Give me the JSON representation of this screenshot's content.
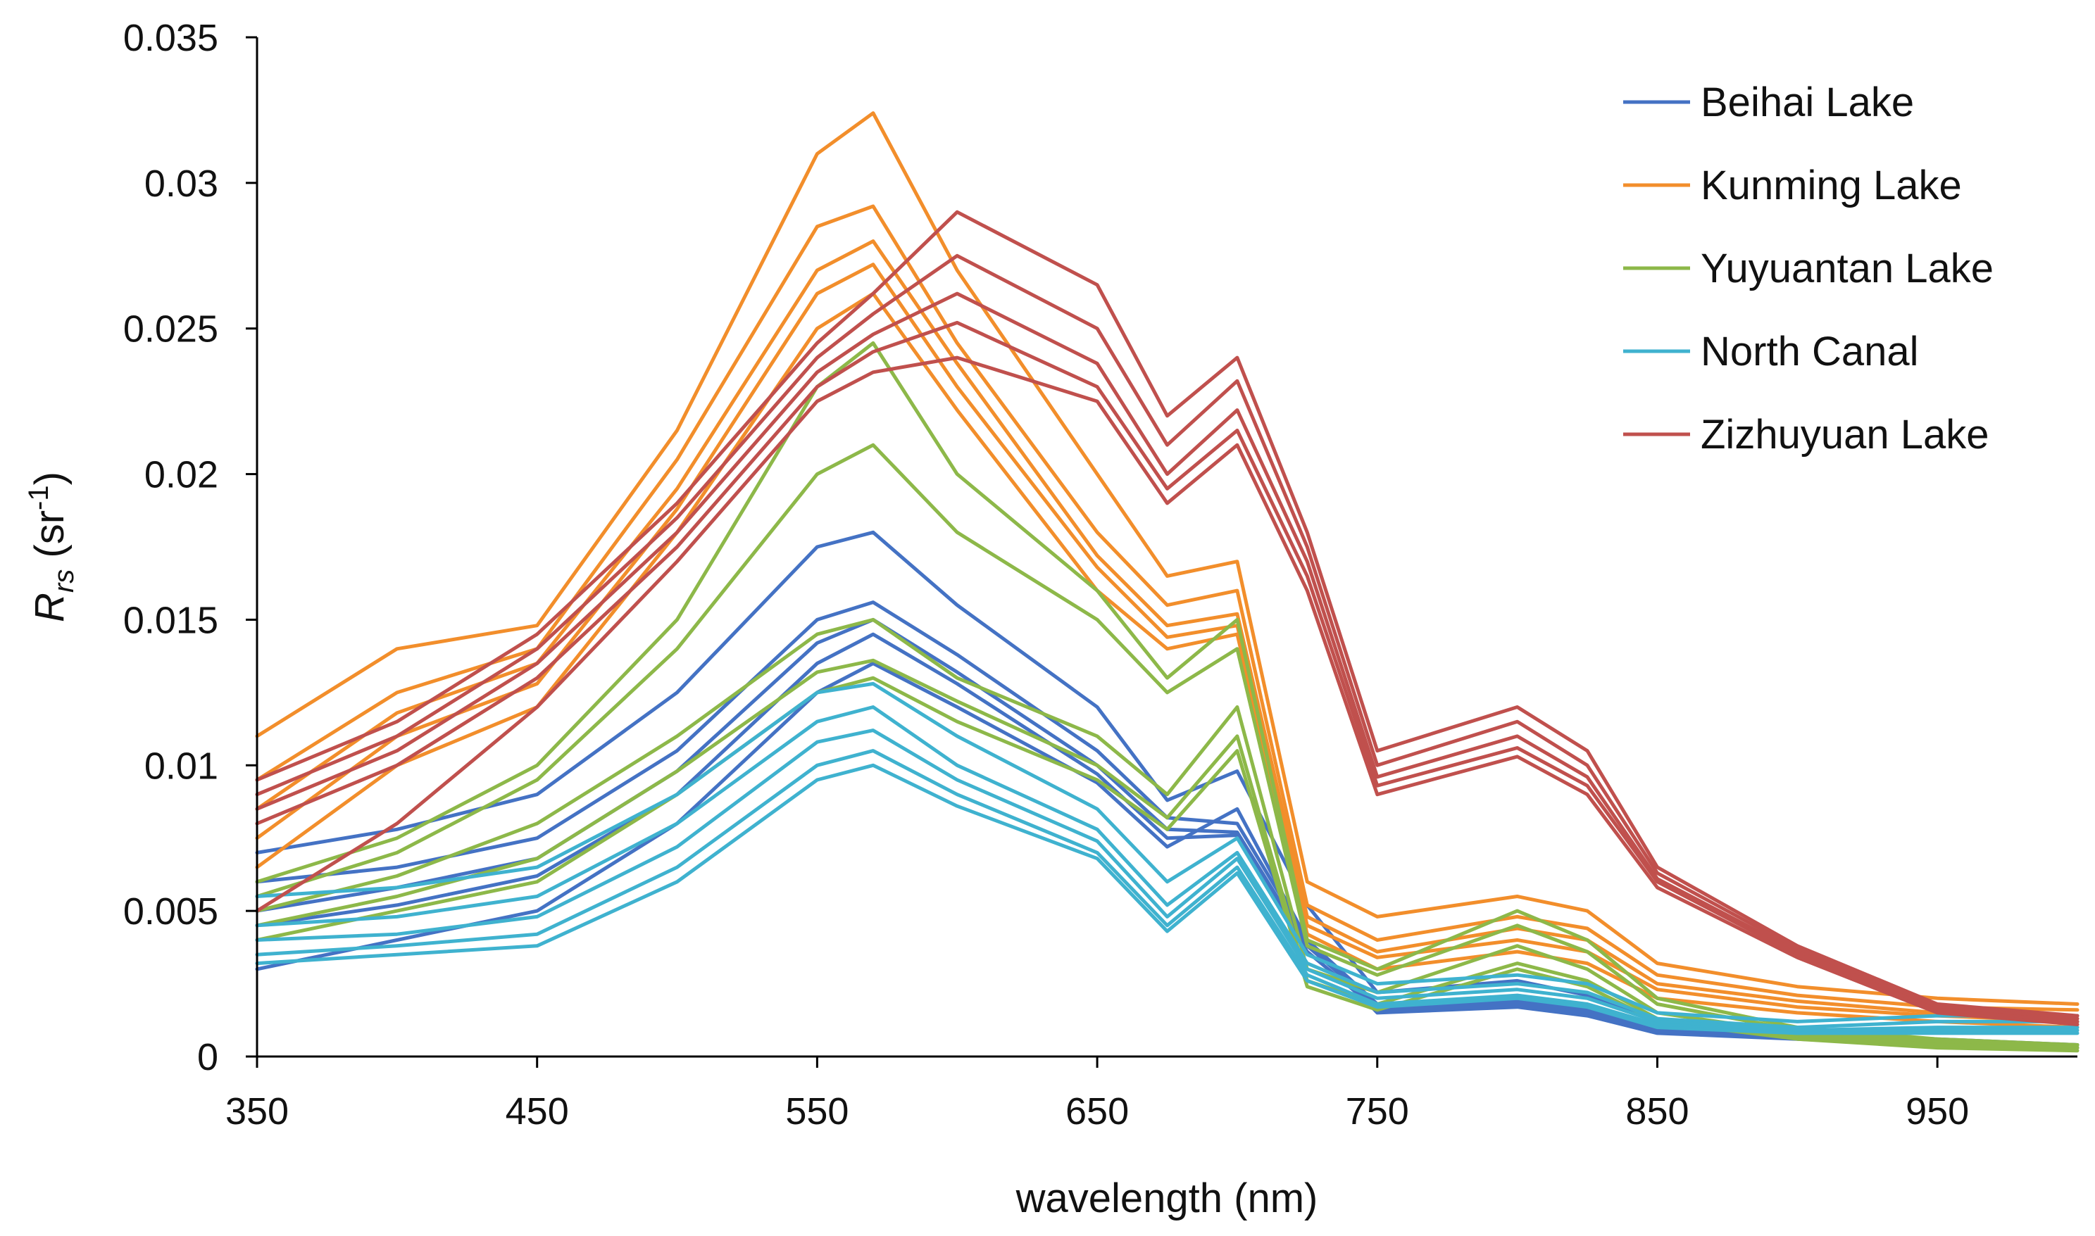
{
  "chart_data": {
    "type": "line",
    "title": "",
    "xlabel": "wavelength (nm)",
    "ylabel": {
      "main": "R",
      "subscript": "rs",
      "unit_prefix": " (sr",
      "unit_sup": "-1",
      "unit_suffix": ")"
    },
    "xlim": [
      350,
      1000
    ],
    "ylim": [
      0,
      0.035
    ],
    "x_ticks": [
      350,
      450,
      550,
      650,
      750,
      850,
      950
    ],
    "x_tick_labels": [
      "350",
      "450",
      "550",
      "650",
      "750",
      "850",
      "950"
    ],
    "y_ticks": [
      0,
      0.005,
      0.01,
      0.015,
      0.02,
      0.025,
      0.03,
      0.035
    ],
    "y_tick_labels": [
      "0",
      "0.005",
      "0.01",
      "0.015",
      "0.02",
      "0.025",
      "0.03",
      "0.035"
    ],
    "grid": false,
    "legend_position": "top-right",
    "x": [
      350,
      400,
      450,
      500,
      550,
      570,
      600,
      650,
      675,
      700,
      725,
      750,
      800,
      825,
      850,
      900,
      950,
      1000
    ],
    "groups": [
      {
        "name": "Beihai Lake",
        "color": "#4472C4",
        "series": [
          {
            "name": "Beihai Lake 1",
            "values": [
              0.006,
              0.0065,
              0.0075,
              0.0105,
              0.015,
              0.0156,
              0.0138,
              0.0105,
              0.0082,
              0.008,
              0.004,
              0.0018,
              0.002,
              0.0017,
              0.001,
              0.0008,
              0.0005,
              0.0004
            ]
          },
          {
            "name": "Beihai Lake 2",
            "values": [
              0.005,
              0.0058,
              0.0068,
              0.0098,
              0.0142,
              0.015,
              0.0132,
              0.01,
              0.0078,
              0.0077,
              0.0038,
              0.0017,
              0.0019,
              0.0016,
              0.0009,
              0.0007,
              0.0005,
              0.0004
            ]
          },
          {
            "name": "Beihai Lake 3",
            "values": [
              0.0045,
              0.0052,
              0.0062,
              0.009,
              0.0135,
              0.0145,
              0.0128,
              0.0097,
              0.0075,
              0.0076,
              0.0036,
              0.0016,
              0.0018,
              0.0015,
              0.0009,
              0.0007,
              0.0004,
              0.0003
            ]
          },
          {
            "name": "Beihai Lake 4",
            "values": [
              0.007,
              0.0078,
              0.009,
              0.0125,
              0.0175,
              0.018,
              0.0155,
              0.012,
              0.0088,
              0.0098,
              0.0052,
              0.0022,
              0.0026,
              0.0021,
              0.0012,
              0.0009,
              0.0006,
              0.0004
            ]
          },
          {
            "name": "Beihai Lake 5",
            "values": [
              0.003,
              0.004,
              0.005,
              0.008,
              0.0125,
              0.0135,
              0.012,
              0.0094,
              0.0072,
              0.0085,
              0.004,
              0.0015,
              0.0017,
              0.0014,
              0.0008,
              0.0006,
              0.0004,
              0.0003
            ]
          }
        ]
      },
      {
        "name": "Kunming Lake",
        "color": "#F28E2B",
        "series": [
          {
            "name": "Kunming Lake 1",
            "values": [
              0.011,
              0.014,
              0.0148,
              0.0215,
              0.031,
              0.0324,
              0.027,
              0.02,
              0.0165,
              0.017,
              0.006,
              0.0048,
              0.0055,
              0.005,
              0.0032,
              0.0024,
              0.002,
              0.0018
            ]
          },
          {
            "name": "Kunming Lake 2",
            "values": [
              0.0095,
              0.0125,
              0.014,
              0.0205,
              0.0285,
              0.0292,
              0.0245,
              0.018,
              0.0155,
              0.016,
              0.0052,
              0.004,
              0.0048,
              0.0044,
              0.0028,
              0.0021,
              0.0017,
              0.0016
            ]
          },
          {
            "name": "Kunming Lake 3",
            "values": [
              0.0085,
              0.0118,
              0.0135,
              0.0195,
              0.027,
              0.028,
              0.0238,
              0.0172,
              0.0148,
              0.0152,
              0.0048,
              0.0036,
              0.0044,
              0.004,
              0.0025,
              0.0019,
              0.0015,
              0.0014
            ]
          },
          {
            "name": "Kunming Lake 4",
            "values": [
              0.0075,
              0.011,
              0.0128,
              0.0188,
              0.0262,
              0.0272,
              0.023,
              0.0168,
              0.0144,
              0.0148,
              0.0045,
              0.0034,
              0.004,
              0.0036,
              0.0023,
              0.0017,
              0.0014,
              0.0012
            ]
          },
          {
            "name": "Kunming Lake 5",
            "values": [
              0.0065,
              0.01,
              0.012,
              0.018,
              0.025,
              0.0262,
              0.0222,
              0.016,
              0.014,
              0.0145,
              0.0042,
              0.003,
              0.0036,
              0.0032,
              0.002,
              0.0015,
              0.0012,
              0.001
            ]
          }
        ]
      },
      {
        "name": "Yuyuantan Lake",
        "color": "#8DB849",
        "series": [
          {
            "name": "Yuyuantan Lake 1",
            "values": [
              0.006,
              0.0075,
              0.01,
              0.015,
              0.023,
              0.0245,
              0.02,
              0.016,
              0.013,
              0.015,
              0.004,
              0.003,
              0.005,
              0.004,
              0.002,
              0.001,
              0.0006,
              0.0004
            ]
          },
          {
            "name": "Yuyuantan Lake 2",
            "values": [
              0.0055,
              0.007,
              0.0095,
              0.014,
              0.02,
              0.021,
              0.018,
              0.015,
              0.0125,
              0.014,
              0.0038,
              0.0028,
              0.0045,
              0.0036,
              0.0018,
              0.0009,
              0.0005,
              0.0004
            ]
          },
          {
            "name": "Yuyuantan Lake 3",
            "values": [
              0.005,
              0.0062,
              0.008,
              0.011,
              0.0145,
              0.015,
              0.013,
              0.011,
              0.009,
              0.012,
              0.003,
              0.0022,
              0.0038,
              0.003,
              0.0015,
              0.0008,
              0.0004,
              0.0003
            ]
          },
          {
            "name": "Yuyuantan Lake 4",
            "values": [
              0.0045,
              0.0055,
              0.0068,
              0.0098,
              0.0132,
              0.0136,
              0.0122,
              0.01,
              0.0082,
              0.011,
              0.0026,
              0.0018,
              0.0032,
              0.0026,
              0.0013,
              0.0007,
              0.0004,
              0.0003
            ]
          },
          {
            "name": "Yuyuantan Lake 5",
            "values": [
              0.004,
              0.005,
              0.006,
              0.009,
              0.0125,
              0.013,
              0.0115,
              0.0095,
              0.0078,
              0.0105,
              0.0024,
              0.0016,
              0.003,
              0.0024,
              0.0012,
              0.0006,
              0.0003,
              0.0002
            ]
          }
        ]
      },
      {
        "name": "North Canal",
        "color": "#3FB2CF",
        "series": [
          {
            "name": "North Canal 1",
            "values": [
              0.0055,
              0.0058,
              0.0065,
              0.009,
              0.0125,
              0.0128,
              0.011,
              0.0085,
              0.006,
              0.0075,
              0.0035,
              0.0025,
              0.0028,
              0.0025,
              0.0015,
              0.0012,
              0.0014,
              0.0014
            ]
          },
          {
            "name": "North Canal 2",
            "values": [
              0.0045,
              0.0048,
              0.0055,
              0.008,
              0.0115,
              0.012,
              0.01,
              0.0078,
              0.0052,
              0.007,
              0.0032,
              0.0022,
              0.0025,
              0.0022,
              0.0013,
              0.001,
              0.0012,
              0.0012
            ]
          },
          {
            "name": "North Canal 3",
            "values": [
              0.004,
              0.0042,
              0.0048,
              0.0072,
              0.0108,
              0.0112,
              0.0095,
              0.0074,
              0.0048,
              0.0068,
              0.003,
              0.002,
              0.0023,
              0.002,
              0.0012,
              0.0009,
              0.001,
              0.001
            ]
          },
          {
            "name": "North Canal 4",
            "values": [
              0.0035,
              0.0038,
              0.0042,
              0.0065,
              0.01,
              0.0105,
              0.009,
              0.007,
              0.0045,
              0.0065,
              0.0028,
              0.0018,
              0.0021,
              0.0018,
              0.0011,
              0.0008,
              0.0009,
              0.0009
            ]
          },
          {
            "name": "North Canal 5",
            "values": [
              0.0032,
              0.0035,
              0.0038,
              0.006,
              0.0095,
              0.01,
              0.0086,
              0.0068,
              0.0043,
              0.0063,
              0.0026,
              0.0017,
              0.002,
              0.0017,
              0.001,
              0.0008,
              0.0008,
              0.0008
            ]
          }
        ]
      },
      {
        "name": "Zizhuyuan Lake",
        "color": "#C0504D",
        "series": [
          {
            "name": "Zizhuyuan Lake 1",
            "values": [
              0.0095,
              0.0115,
              0.0145,
              0.019,
              0.0245,
              0.0262,
              0.029,
              0.0265,
              0.022,
              0.024,
              0.018,
              0.0105,
              0.012,
              0.0105,
              0.0065,
              0.0038,
              0.0018,
              0.0014
            ]
          },
          {
            "name": "Zizhuyuan Lake 2",
            "values": [
              0.009,
              0.011,
              0.014,
              0.0185,
              0.024,
              0.0255,
              0.0275,
              0.025,
              0.021,
              0.0232,
              0.0175,
              0.01,
              0.0115,
              0.01,
              0.0063,
              0.0037,
              0.0017,
              0.0013
            ]
          },
          {
            "name": "Zizhuyuan Lake 3",
            "values": [
              0.0085,
              0.0105,
              0.0135,
              0.018,
              0.0235,
              0.0248,
              0.0262,
              0.0238,
              0.02,
              0.0222,
              0.017,
              0.0096,
              0.011,
              0.0096,
              0.0061,
              0.0036,
              0.0016,
              0.0012
            ]
          },
          {
            "name": "Zizhuyuan Lake 4",
            "values": [
              0.008,
              0.01,
              0.013,
              0.0175,
              0.023,
              0.0242,
              0.0252,
              0.023,
              0.0195,
              0.0215,
              0.0165,
              0.0093,
              0.0106,
              0.0093,
              0.006,
              0.0035,
              0.0016,
              0.0012
            ]
          },
          {
            "name": "Zizhuyuan Lake 5",
            "values": [
              0.005,
              0.008,
              0.012,
              0.017,
              0.0225,
              0.0235,
              0.024,
              0.0225,
              0.019,
              0.021,
              0.016,
              0.009,
              0.0103,
              0.009,
              0.0058,
              0.0034,
              0.0015,
              0.0011
            ]
          }
        ]
      }
    ]
  }
}
